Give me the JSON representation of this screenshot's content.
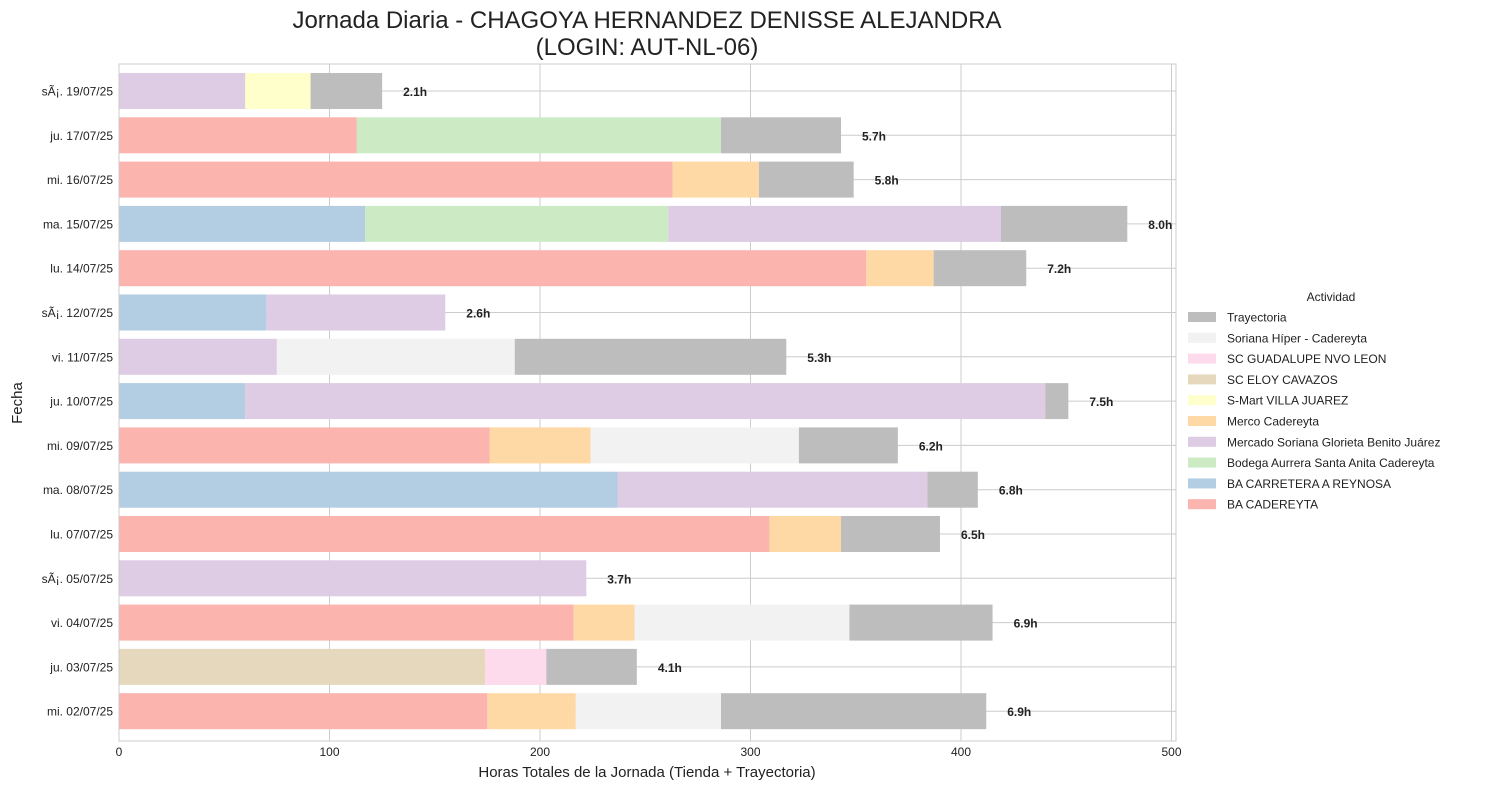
{
  "chart_data": {
    "type": "bar",
    "orientation": "horizontal",
    "stacked": true,
    "title": "Jornada Diaria - CHAGOYA HERNANDEZ DENISSE ALEJANDRA",
    "subtitle": "(LOGIN: AUT-NL-06)",
    "xlabel": "Horas Totales de la Jornada (Tienda + Trayectoria)",
    "ylabel": "Fecha",
    "xlim": [
      0,
      500
    ],
    "xticks": [
      0,
      100,
      200,
      300,
      400,
      500
    ],
    "grid": true,
    "legend_title": "Actividad",
    "legend_position": "center-right",
    "categories": [
      "sÃ¡. 19/07/25",
      "ju. 17/07/25",
      "mi. 16/07/25",
      "ma. 15/07/25",
      "lu. 14/07/25",
      "sÃ¡. 12/07/25",
      "vi. 11/07/25",
      "ju. 10/07/25",
      "mi. 09/07/25",
      "ma. 08/07/25",
      "lu. 07/07/25",
      "sÃ¡. 05/07/25",
      "vi. 04/07/25",
      "ju. 03/07/25",
      "mi. 02/07/25"
    ],
    "series": [
      {
        "name": "BA CADEREYTA",
        "color": "#fbb4ae",
        "values": [
          0,
          113,
          263,
          0,
          355,
          0,
          0,
          0,
          176,
          0,
          309,
          0,
          216,
          0,
          175
        ]
      },
      {
        "name": "BA CARRETERA A REYNOSA",
        "color": "#b3cde3",
        "values": [
          0,
          0,
          0,
          117,
          0,
          70,
          0,
          60,
          0,
          237,
          0,
          0,
          0,
          0,
          0
        ]
      },
      {
        "name": "Bodega Aurrera Santa Anita Cadereyta",
        "color": "#ccebc5",
        "values": [
          0,
          173,
          0,
          144,
          0,
          0,
          0,
          0,
          0,
          0,
          0,
          0,
          0,
          0,
          0
        ]
      },
      {
        "name": "Mercado Soriana Glorieta Benito Juárez",
        "color": "#decbe4",
        "values": [
          60,
          0,
          0,
          158,
          0,
          85,
          75,
          380,
          0,
          147,
          0,
          222,
          0,
          0,
          0
        ]
      },
      {
        "name": "Merco Cadereyta",
        "color": "#fed9a6",
        "values": [
          0,
          0,
          41,
          0,
          32,
          0,
          0,
          0,
          48,
          0,
          34,
          0,
          29,
          0,
          42
        ]
      },
      {
        "name": "S-Mart VILLA JUAREZ",
        "color": "#ffffcc",
        "values": [
          31,
          0,
          0,
          0,
          0,
          0,
          0,
          0,
          0,
          0,
          0,
          0,
          0,
          0,
          0
        ]
      },
      {
        "name": "SC ELOY CAVAZOS",
        "color": "#e5d8bd",
        "values": [
          0,
          0,
          0,
          0,
          0,
          0,
          0,
          0,
          0,
          0,
          0,
          0,
          0,
          174,
          0
        ]
      },
      {
        "name": "SC GUADALUPE NVO LEON",
        "color": "#fddaec",
        "values": [
          0,
          0,
          0,
          0,
          0,
          0,
          0,
          0,
          0,
          0,
          0,
          0,
          0,
          29,
          0
        ]
      },
      {
        "name": "Soriana Híper - Cadereyta",
        "color": "#f2f2f2",
        "values": [
          0,
          0,
          0,
          0,
          0,
          0,
          113,
          0,
          99,
          0,
          0,
          0,
          102,
          0,
          69
        ]
      },
      {
        "name": "Trayectoria",
        "color": "#bdbdbd",
        "values": [
          34,
          57,
          45,
          60,
          44,
          0,
          129,
          11,
          47,
          24,
          47,
          0,
          68,
          43,
          126
        ]
      }
    ],
    "totals_labels": [
      "2.1h",
      "5.7h",
      "5.8h",
      "8.0h",
      "7.2h",
      "2.6h",
      "5.3h",
      "7.5h",
      "6.2h",
      "6.8h",
      "6.5h",
      "3.7h",
      "6.9h",
      "4.1h",
      "6.9h"
    ],
    "legend_order": [
      "Trayectoria",
      "Soriana Híper - Cadereyta",
      "SC GUADALUPE NVO LEON",
      "SC ELOY CAVAZOS",
      "S-Mart VILLA JUAREZ",
      "Merco Cadereyta",
      "Mercado Soriana Glorieta Benito Juárez",
      "Bodega Aurrera Santa Anita Cadereyta",
      "BA CARRETERA A REYNOSA",
      "BA CADEREYTA"
    ]
  }
}
